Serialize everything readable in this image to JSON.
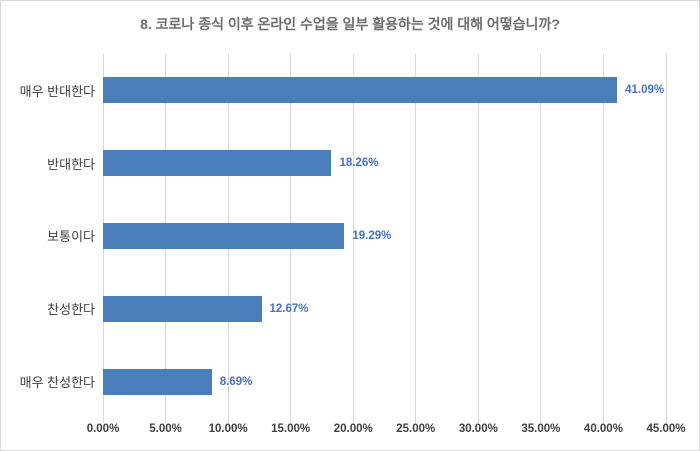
{
  "chart_data": {
    "type": "bar",
    "orientation": "horizontal",
    "title": "8. 코로나 종식 이후 온라인 수업을 일부 활용하는 것에 대해 어떻습니까?",
    "categories": [
      "매우 반대한다",
      "반대한다",
      "보통이다",
      "찬성한다",
      "매우 찬성한다"
    ],
    "values": [
      41.09,
      18.26,
      19.29,
      12.67,
      8.69
    ],
    "value_labels": [
      "41.09%",
      "18.26%",
      "19.29%",
      "12.67%",
      "8.69%"
    ],
    "xlabel": "",
    "ylabel": "",
    "xlim": [
      0,
      45
    ],
    "x_tick_values": [
      0,
      5,
      10,
      15,
      20,
      25,
      30,
      35,
      40,
      45
    ],
    "x_ticks": [
      "0.00%",
      "5.00%",
      "10.00%",
      "15.00%",
      "20.00%",
      "25.00%",
      "30.00%",
      "35.00%",
      "40.00%",
      "45.00%"
    ],
    "grid": "vertical",
    "legend": "none",
    "colors": {
      "bar": "#4A7EBB",
      "value_label": "#4472C4",
      "gridline": "#D9D9D9",
      "title": "#6E6E6E",
      "axis_text": "#3F3F3F",
      "category_text": "#3F3F3F",
      "border": "#D9D9D9",
      "background": "#FFFFFF"
    }
  }
}
